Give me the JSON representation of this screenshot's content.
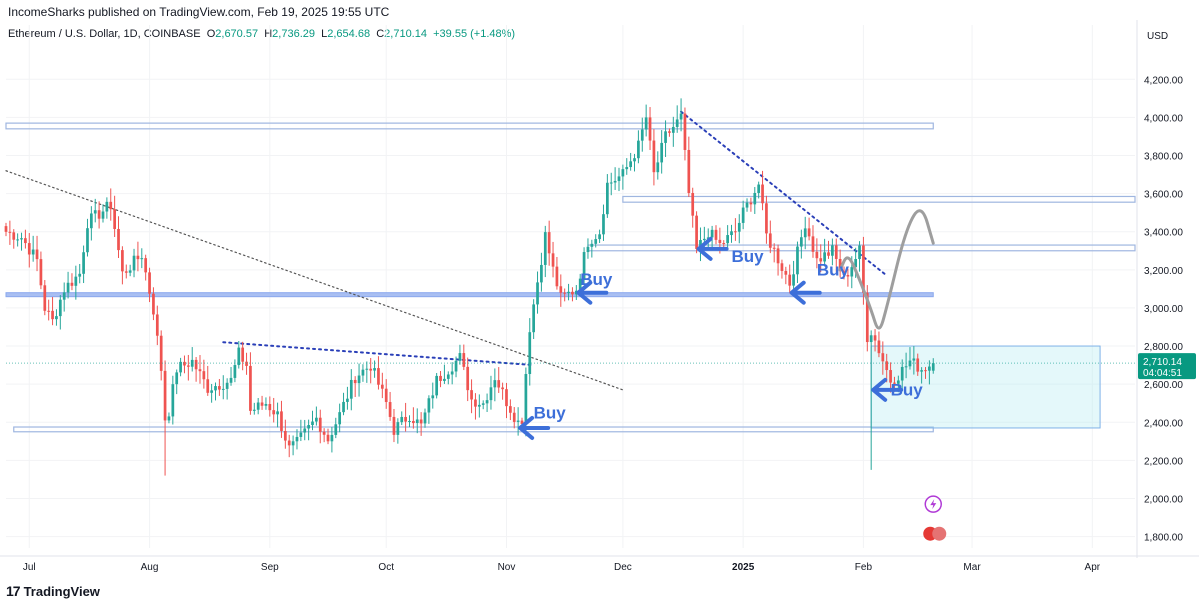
{
  "header": {
    "publisher": "IncomeSharks published on TradingView.com, Feb 19, 2025 19:55 UTC",
    "symbol": "Ethereum / U.S. Dollar, 1D, COINBASE",
    "o_label": "O",
    "o_value": "2,670.57",
    "h_label": "H",
    "h_value": "2,736.29",
    "l_label": "L",
    "l_value": "2,654.68",
    "c_label": "C",
    "c_value": "2,710.14",
    "change": "+39.55 (+1.48%)",
    "currency": "USD"
  },
  "footer": {
    "logo_text": "TradingView"
  },
  "colors": {
    "up": "#26a69a",
    "down": "#ef5350",
    "accent": "#2962ff",
    "buy_arrow": "#3d6fd9",
    "zone": "#b2ebf2"
  },
  "chart_data": {
    "type": "candlestick",
    "y_axis": {
      "ticks": [
        "4,200.00",
        "4,000.00",
        "3,800.00",
        "3,600.00",
        "3,400.00",
        "3,200.00",
        "3,000.00",
        "2,800.00",
        "2,600.00",
        "2,400.00",
        "2,200.00",
        "2,000.00",
        "1,800.00"
      ],
      "tick_values": [
        4200,
        4000,
        3800,
        3600,
        3400,
        3200,
        3000,
        2800,
        2600,
        2400,
        2200,
        2000,
        1800
      ],
      "range": [
        1740,
        4380
      ]
    },
    "x_axis": {
      "labels": [
        "Jul",
        "Aug",
        "Sep",
        "Oct",
        "Nov",
        "Dec",
        "2025",
        "Feb",
        "Mar",
        "Apr"
      ],
      "label_dates": [
        "2024-07-01",
        "2024-08-01",
        "2024-09-01",
        "2024-10-01",
        "2024-11-01",
        "2024-12-01",
        "2025-01-01",
        "2025-02-01",
        "2025-03-01",
        "2025-04-01"
      ],
      "range": [
        "2024-06-25",
        "2025-04-12"
      ]
    },
    "last_price": {
      "value": 2710.14,
      "label": "2,710.14",
      "countdown": "04:04:51"
    },
    "anchors": [
      {
        "date": "2024-06-25",
        "close": 3400
      },
      {
        "date": "2024-06-29",
        "close": 3370
      },
      {
        "date": "2024-07-03",
        "close": 3250
      },
      {
        "date": "2024-07-05",
        "close": 3000
      },
      {
        "date": "2024-07-07",
        "close": 2930
      },
      {
        "date": "2024-07-10",
        "close": 3100
      },
      {
        "date": "2024-07-14",
        "close": 3180
      },
      {
        "date": "2024-07-16",
        "close": 3450
      },
      {
        "date": "2024-07-20",
        "close": 3510
      },
      {
        "date": "2024-07-22",
        "close": 3540
      },
      {
        "date": "2024-07-25",
        "close": 3180
      },
      {
        "date": "2024-07-28",
        "close": 3240
      },
      {
        "date": "2024-07-30",
        "close": 3280
      },
      {
        "date": "2024-08-02",
        "close": 2990
      },
      {
        "date": "2024-08-04",
        "close": 2680
      },
      {
        "date": "2024-08-05",
        "close": 2420
      },
      {
        "date": "2024-08-06",
        "close": 2460
      },
      {
        "date": "2024-08-08",
        "close": 2680
      },
      {
        "date": "2024-08-12",
        "close": 2720
      },
      {
        "date": "2024-08-16",
        "close": 2580
      },
      {
        "date": "2024-08-22",
        "close": 2620
      },
      {
        "date": "2024-08-24",
        "close": 2760
      },
      {
        "date": "2024-08-26",
        "close": 2700
      },
      {
        "date": "2024-08-27",
        "close": 2460
      },
      {
        "date": "2024-08-31",
        "close": 2500
      },
      {
        "date": "2024-09-03",
        "close": 2440
      },
      {
        "date": "2024-09-06",
        "close": 2260
      },
      {
        "date": "2024-09-08",
        "close": 2290
      },
      {
        "date": "2024-09-13",
        "close": 2420
      },
      {
        "date": "2024-09-16",
        "close": 2310
      },
      {
        "date": "2024-09-19",
        "close": 2440
      },
      {
        "date": "2024-09-23",
        "close": 2640
      },
      {
        "date": "2024-09-27",
        "close": 2700
      },
      {
        "date": "2024-10-01",
        "close": 2500
      },
      {
        "date": "2024-10-03",
        "close": 2360
      },
      {
        "date": "2024-10-07",
        "close": 2440
      },
      {
        "date": "2024-10-10",
        "close": 2380
      },
      {
        "date": "2024-10-14",
        "close": 2620
      },
      {
        "date": "2024-10-20",
        "close": 2740
      },
      {
        "date": "2024-10-23",
        "close": 2520
      },
      {
        "date": "2024-10-26",
        "close": 2500
      },
      {
        "date": "2024-10-29",
        "close": 2640
      },
      {
        "date": "2024-11-01",
        "close": 2510
      },
      {
        "date": "2024-11-04",
        "close": 2400
      },
      {
        "date": "2024-11-05",
        "close": 2420
      },
      {
        "date": "2024-11-07",
        "close": 2900
      },
      {
        "date": "2024-11-11",
        "close": 3380
      },
      {
        "date": "2024-11-13",
        "close": 3200
      },
      {
        "date": "2024-11-15",
        "close": 3050
      },
      {
        "date": "2024-11-19",
        "close": 3100
      },
      {
        "date": "2024-11-22",
        "close": 3350
      },
      {
        "date": "2024-11-25",
        "close": 3400
      },
      {
        "date": "2024-11-27",
        "close": 3650
      },
      {
        "date": "2024-12-01",
        "close": 3700
      },
      {
        "date": "2024-12-05",
        "close": 3850
      },
      {
        "date": "2024-12-07",
        "close": 4000
      },
      {
        "date": "2024-12-09",
        "close": 3700
      },
      {
        "date": "2024-12-12",
        "close": 3900
      },
      {
        "date": "2024-12-16",
        "close": 4000
      },
      {
        "date": "2024-12-18",
        "close": 3600
      },
      {
        "date": "2024-12-20",
        "close": 3300
      },
      {
        "date": "2024-12-23",
        "close": 3400
      },
      {
        "date": "2024-12-26",
        "close": 3330
      },
      {
        "date": "2024-12-30",
        "close": 3400
      },
      {
        "date": "2025-01-01",
        "close": 3500
      },
      {
        "date": "2025-01-05",
        "close": 3650
      },
      {
        "date": "2025-01-07",
        "close": 3380
      },
      {
        "date": "2025-01-09",
        "close": 3300
      },
      {
        "date": "2025-01-13",
        "close": 3130
      },
      {
        "date": "2025-01-17",
        "close": 3450
      },
      {
        "date": "2025-01-20",
        "close": 3250
      },
      {
        "date": "2025-01-24",
        "close": 3300
      },
      {
        "date": "2025-01-27",
        "close": 3150
      },
      {
        "date": "2025-01-31",
        "close": 3300
      },
      {
        "date": "2025-02-02",
        "close": 2850
      },
      {
        "date": "2025-02-03",
        "close": 2880
      },
      {
        "date": "2025-02-05",
        "close": 2780
      },
      {
        "date": "2025-02-08",
        "close": 2620
      },
      {
        "date": "2025-02-10",
        "close": 2650
      },
      {
        "date": "2025-02-13",
        "close": 2720
      },
      {
        "date": "2025-02-16",
        "close": 2680
      },
      {
        "date": "2025-02-19",
        "close": 2710.14
      }
    ],
    "last_candle": {
      "date": "2025-02-19",
      "open": 2670.57,
      "high": 2736.29,
      "low": 2654.68,
      "close": 2710.14
    },
    "extreme_wicks": [
      {
        "date": "2024-08-05",
        "low": 2120
      },
      {
        "date": "2024-12-16",
        "high": 4100
      },
      {
        "date": "2025-02-03",
        "low": 2150
      }
    ],
    "horizontal_zones": [
      {
        "from": "2024-06-25",
        "to": "2025-02-19",
        "low": 3940,
        "high": 3970,
        "style": "outline"
      },
      {
        "from": "2024-12-01",
        "to": "2025-04-12",
        "low": 3555,
        "high": 3585,
        "style": "outline"
      },
      {
        "from": "2024-11-22",
        "to": "2025-04-12",
        "low": 3300,
        "high": 3330,
        "style": "outline"
      },
      {
        "from": "2024-06-25",
        "to": "2025-02-19",
        "low": 3060,
        "high": 3080,
        "style": "filled"
      },
      {
        "from": "2024-06-27",
        "to": "2025-02-19",
        "low": 2350,
        "high": 2375,
        "style": "outline"
      },
      {
        "from": "2025-02-03",
        "to": "2025-04-03",
        "low": 2370,
        "high": 2800,
        "style": "box"
      }
    ],
    "trendlines": [
      {
        "from": {
          "date": "2024-06-25",
          "price": 3720
        },
        "to": {
          "date": "2024-12-01",
          "price": 2570
        },
        "style": "dotted-gray"
      },
      {
        "from": {
          "date": "2024-08-20",
          "price": 2820
        },
        "to": {
          "date": "2024-11-08",
          "price": 2700
        },
        "style": "dotted-blue"
      },
      {
        "from": {
          "date": "2024-12-16",
          "price": 4030
        },
        "to": {
          "date": "2025-02-07",
          "price": 3170
        },
        "style": "dotted-blue"
      }
    ],
    "projection_path": [
      {
        "date": "2025-01-26",
        "price": 3200
      },
      {
        "date": "2025-01-28",
        "price": 3290
      },
      {
        "date": "2025-01-31",
        "price": 3150
      },
      {
        "date": "2025-02-03",
        "price": 2990
      },
      {
        "date": "2025-02-05",
        "price": 2860
      },
      {
        "date": "2025-02-07",
        "price": 3000
      },
      {
        "date": "2025-02-12",
        "price": 3420
      },
      {
        "date": "2025-02-16",
        "price": 3550
      },
      {
        "date": "2025-02-19",
        "price": 3340
      }
    ],
    "annotations": [
      {
        "text": "Buy",
        "date": "2024-11-20",
        "price": 3120
      },
      {
        "text": "Buy",
        "date": "2024-11-08",
        "price": 2420
      },
      {
        "text": "Buy",
        "date": "2024-12-29",
        "price": 3240
      },
      {
        "text": "Buy",
        "date": "2025-01-20",
        "price": 3170
      },
      {
        "text": "Buy",
        "date": "2025-02-08",
        "price": 2540
      }
    ],
    "buy_arrows": [
      {
        "date": "2024-11-19",
        "price": 3080
      },
      {
        "date": "2024-11-04",
        "price": 2370
      },
      {
        "date": "2024-12-20",
        "price": 3310
      },
      {
        "date": "2025-01-13",
        "price": 3080
      },
      {
        "date": "2025-02-03",
        "price": 2570
      }
    ]
  }
}
